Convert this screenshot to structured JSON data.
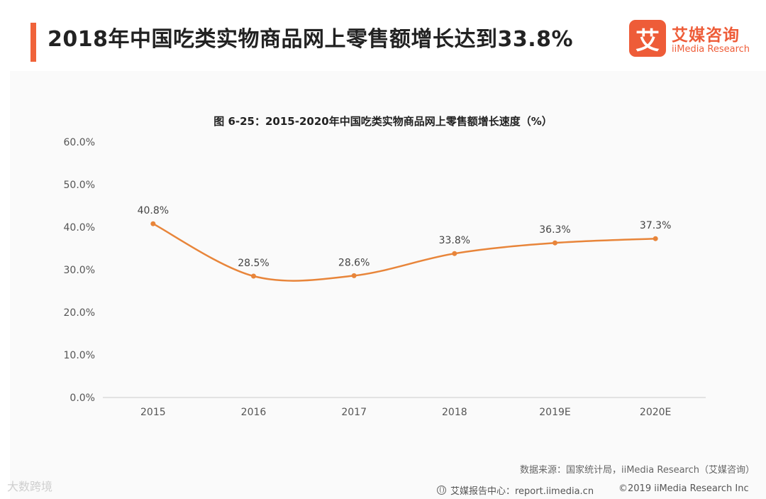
{
  "headline": "2018年中国吃类实物商品网上零售额增长达到33.8%",
  "logo": {
    "mark": "艾",
    "name_cn": "艾媒咨询",
    "name_en": "iiMedia Research"
  },
  "source_note": "数据来源：国家统计局，iiMedia Research（艾媒咨询）",
  "watermark": "大数跨境",
  "footer": {
    "report_center": "艾媒报告中心：report.iimedia.cn",
    "copyright": "©2019  iiMedia Research  Inc"
  },
  "colors": {
    "accent": "#f0633a",
    "line": "#e8853a",
    "logo": "#ee5c38"
  },
  "chart_data": {
    "type": "line",
    "title": "图 6-25：2015-2020年中国吃类实物商品网上零售额增长速度（%）",
    "categories": [
      "2015",
      "2016",
      "2017",
      "2018",
      "2019E",
      "2020E"
    ],
    "series": [
      {
        "values": [
          40.8,
          28.5,
          28.6,
          33.8,
          36.3,
          37.3
        ],
        "labels": [
          "40.8%",
          "28.5%",
          "28.6%",
          "33.8%",
          "36.3%",
          "37.3%"
        ]
      }
    ],
    "ylim": [
      0,
      60
    ],
    "yticks": [
      "0.0%",
      "10.0%",
      "20.0%",
      "30.0%",
      "40.0%",
      "50.0%",
      "60.0%"
    ],
    "grid": false,
    "legend": "none",
    "smooth": true
  }
}
